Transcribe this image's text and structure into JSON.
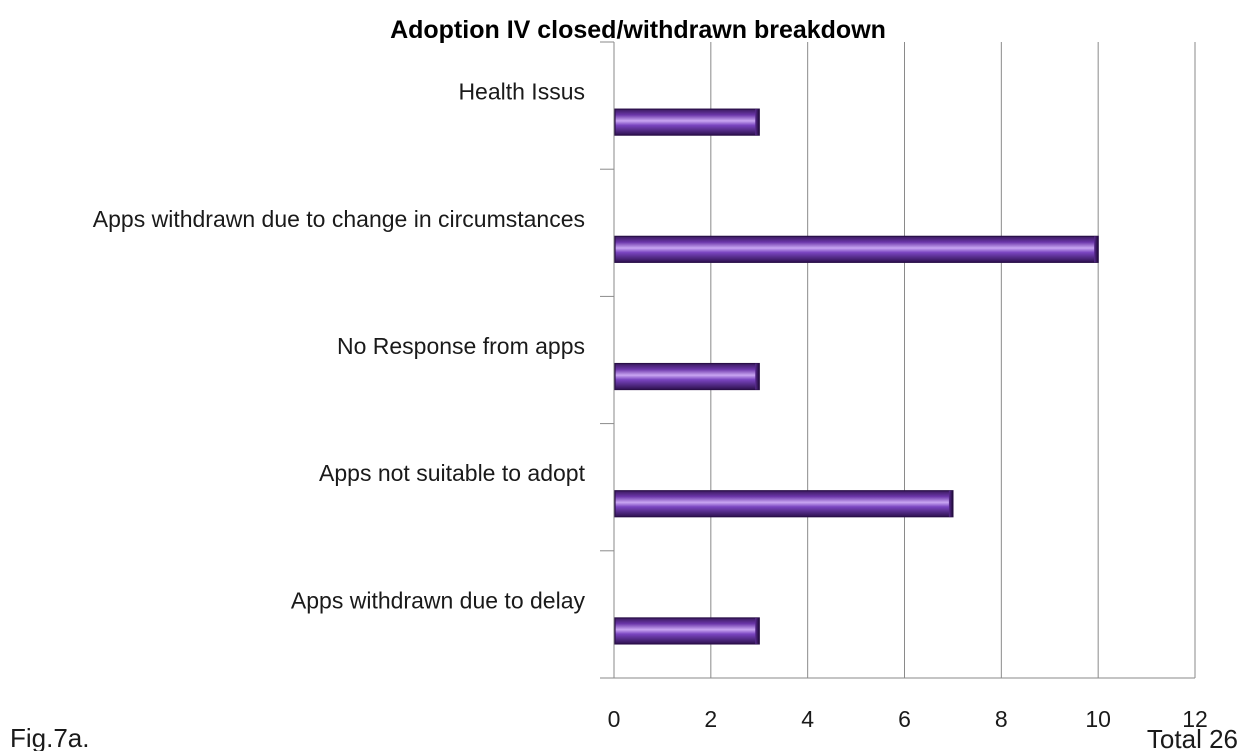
{
  "footer": {
    "figure_label": "Fig.7a.",
    "total_label": "Total 26"
  },
  "colors": {
    "bar_dark": "#3a1a5e",
    "bar_mid": "#7a45c0",
    "bar_light": "#c9a6f2",
    "gridline": "#8a8a8a"
  },
  "chart_data": {
    "type": "bar",
    "orientation": "horizontal",
    "title": "Adoption IV closed/withdrawn breakdown",
    "xlabel": "",
    "ylabel": "",
    "categories": [
      "Health Issus",
      "Apps withdrawn due to change in circumstances",
      "No Response from apps",
      "Apps not suitable to adopt",
      "Apps withdrawn due to delay"
    ],
    "values": [
      3,
      10,
      3,
      7,
      3
    ],
    "xlim": [
      0,
      12
    ],
    "xticks": [
      "0",
      "2",
      "4",
      "6",
      "8",
      "10",
      "12"
    ],
    "grid": true,
    "legend": "none"
  }
}
